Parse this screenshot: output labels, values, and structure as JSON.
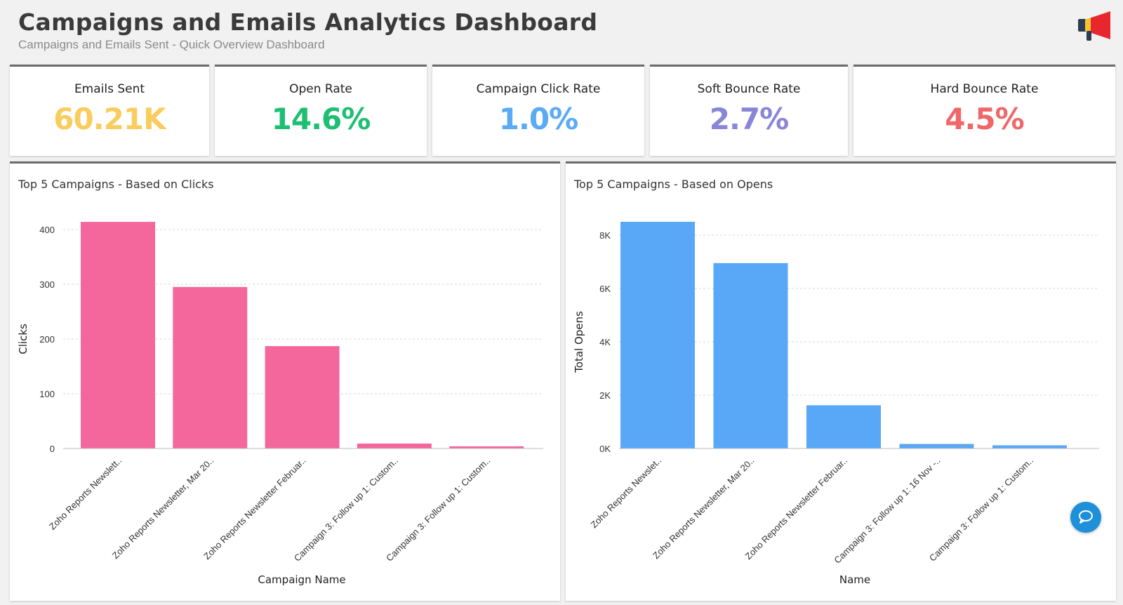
{
  "header": {
    "title": "Campaigns and Emails Analytics Dashboard",
    "subtitle": "Campaigns and Emails Sent - Quick Overview Dashboard",
    "logo_icon": "megaphone-icon"
  },
  "kpis": [
    {
      "label": "Emails Sent",
      "value": "60.21K",
      "color": "#f9cc5e"
    },
    {
      "label": "Open Rate",
      "value": "14.6%",
      "color": "#1fbf73"
    },
    {
      "label": "Campaign Click Rate",
      "value": "1.0%",
      "color": "#5aaaf6"
    },
    {
      "label": "Soft Bounce Rate",
      "value": "2.7%",
      "color": "#8a86d6"
    },
    {
      "label": "Hard Bounce Rate",
      "value": "4.5%",
      "color": "#ef6769"
    }
  ],
  "chat_icon": "chat-icon",
  "chart_data": [
    {
      "type": "bar",
      "title": "Top 5 Campaigns - Based on Clicks",
      "xlabel": "Campaign Name",
      "ylabel": "Clicks",
      "categories": [
        "Zoho Reports Newslett..",
        "Zoho Reports Newsletter, Mar 20..",
        "Zoho Reports Newsletter Februar..",
        "Campaign 3: Follow up 1: Custom..",
        "Campaign 3: Follow up 1: Custom.."
      ],
      "values": [
        414,
        295,
        187,
        9,
        4
      ],
      "ylim": [
        0,
        400
      ],
      "yticks": [
        0,
        100,
        200,
        300,
        400
      ],
      "ytick_labels": [
        "0",
        "100",
        "200",
        "300",
        "400"
      ],
      "color": "#f4679c",
      "grid": true
    },
    {
      "type": "bar",
      "title": "Top 5 Campaigns - Based on Opens",
      "xlabel": "Name",
      "ylabel": "Total Opens",
      "categories": [
        "Zoho Reports Newslet..",
        "Zoho Reports Newsletter, Mar 20..",
        "Zoho Reports Newsletter Februar..",
        "Campaign 3: Follow up 1: 16 Nov -..",
        "Campaign 3: Follow up 1: Custom.."
      ],
      "values": [
        8500,
        6950,
        1620,
        170,
        120
      ],
      "ylim": [
        0,
        8000
      ],
      "yticks": [
        0,
        2000,
        4000,
        6000,
        8000
      ],
      "ytick_labels": [
        "0K",
        "2K",
        "4K",
        "6K",
        "8K"
      ],
      "color": "#59a8f7",
      "grid": true
    }
  ]
}
